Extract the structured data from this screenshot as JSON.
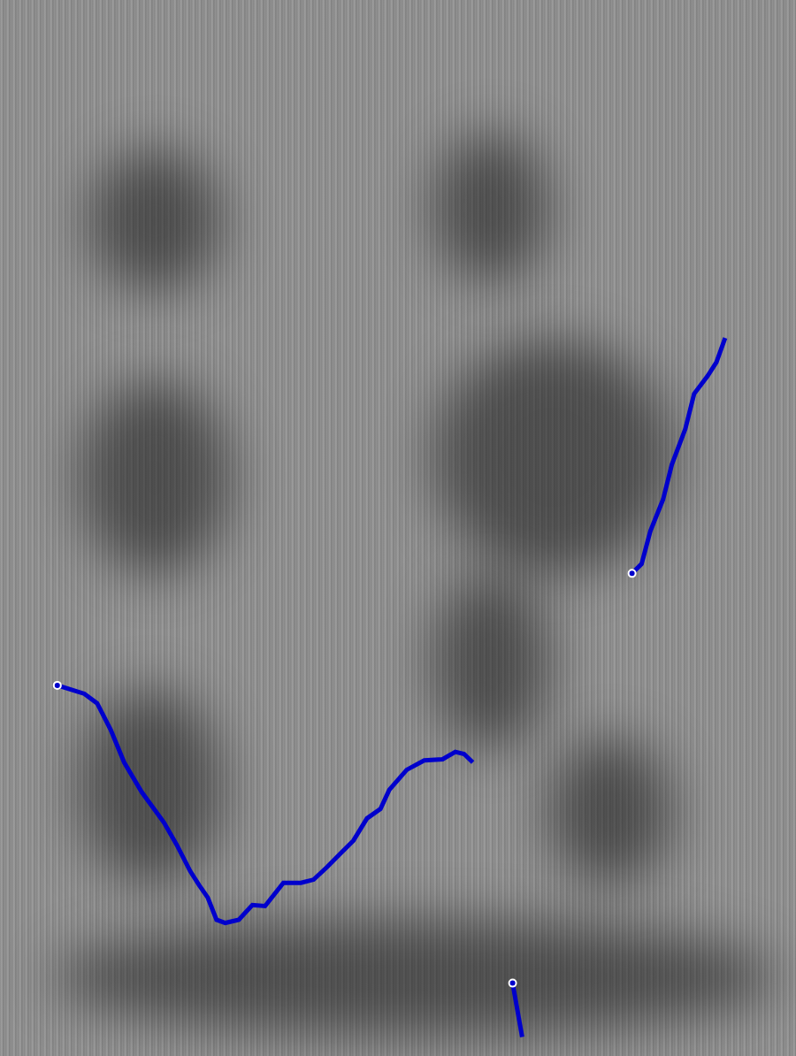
{
  "chart_data": {
    "type": "line",
    "xlim": [
      0,
      100
    ],
    "ylim": [
      0,
      100
    ],
    "xticks": [
      0,
      100
    ],
    "yticks": [
      0,
      100
    ],
    "grid": false,
    "tick_labels": false,
    "series": [
      {
        "color": "#0000cc",
        "x": [
          7.2,
          8.9,
          10.6,
          12.2,
          13.9,
          15.6,
          17.8,
          20.6,
          22.2,
          23.9,
          25.0,
          26.1,
          27.2,
          28.3,
          30.0,
          31.7,
          33.3,
          35.6,
          37.8,
          39.4,
          41.1,
          42.8,
          44.4,
          46.1,
          47.8,
          48.9,
          51.1,
          53.3,
          55.6,
          57.2,
          58.3,
          59.4
        ],
        "values": [
          35.1,
          34.7,
          34.3,
          33.4,
          30.9,
          27.8,
          25.0,
          22.1,
          20.0,
          17.5,
          16.2,
          15.0,
          12.9,
          12.6,
          12.9,
          14.3,
          14.2,
          16.4,
          16.4,
          16.7,
          17.9,
          19.2,
          20.4,
          22.5,
          23.4,
          25.2,
          27.1,
          28.0,
          28.1,
          28.8,
          28.6,
          27.8
        ]
      },
      {
        "color": "#0000cc",
        "x": [
          79.4,
          80.6,
          81.7,
          83.3,
          84.4,
          86.1,
          87.2,
          88.9,
          90.0,
          91.1
        ],
        "values": [
          45.7,
          46.6,
          49.7,
          52.7,
          56.0,
          59.4,
          62.7,
          64.4,
          65.7,
          68.0
        ]
      },
      {
        "color": "#0000cc",
        "x": [
          64.4,
          65.6
        ],
        "values": [
          6.9,
          1.8
        ]
      }
    ],
    "dark_regions": [
      {
        "x1": 11.1,
        "x2": 27.8,
        "y1": 72.4,
        "y2": 85.8
      },
      {
        "x1": 54.4,
        "x2": 68.9,
        "y1": 73.2,
        "y2": 87.4
      },
      {
        "x1": 10.0,
        "x2": 28.9,
        "y1": 45.6,
        "y2": 63.9
      },
      {
        "x1": 54.4,
        "x2": 84.4,
        "y1": 45.6,
        "y2": 67.8
      },
      {
        "x1": 10.0,
        "x2": 27.8,
        "y1": 16.2,
        "y2": 34.7
      },
      {
        "x1": 54.4,
        "x2": 68.9,
        "y1": 29.0,
        "y2": 45.6
      },
      {
        "x1": 6.7,
        "x2": 97.8,
        "y1": 2.0,
        "y2": 12.9
      },
      {
        "x1": 68.9,
        "x2": 84.4,
        "y1": 16.2,
        "y2": 30.1
      }
    ]
  }
}
